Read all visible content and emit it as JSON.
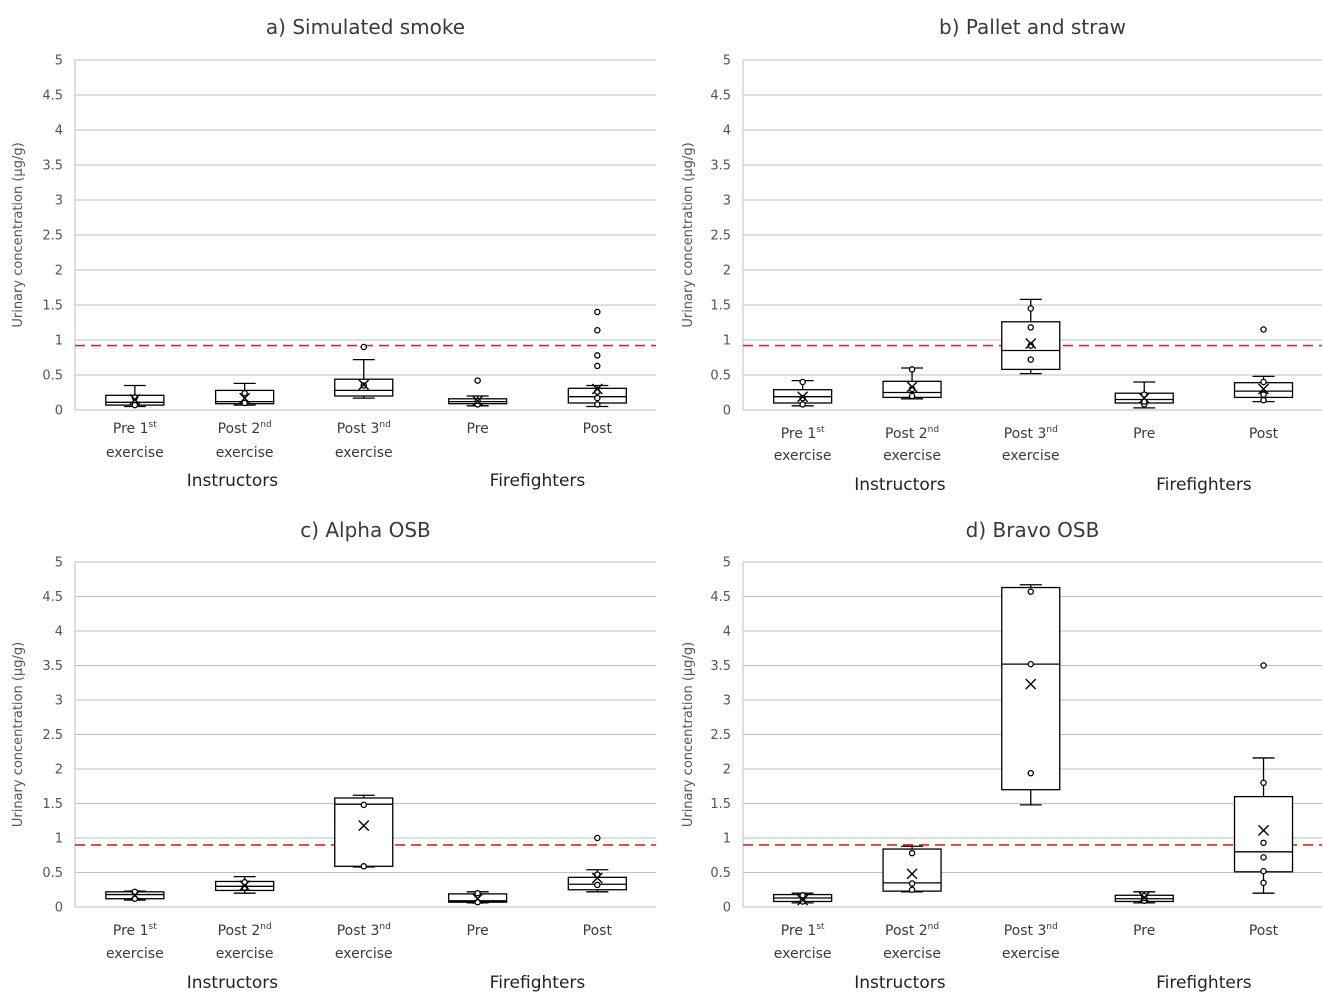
{
  "colors": {
    "box": "#000000",
    "grid": "#bfbfbf",
    "reference_line": "#e8231f",
    "text": "#3a3a3a"
  },
  "chart_data": [
    {
      "type": "box",
      "title": "a) Simulated smoke",
      "ylabel": "Urinary concentration (µg/g)",
      "ylim": [
        0,
        5
      ],
      "yticks": [
        "0",
        "0.5",
        "1",
        "1.5",
        "2",
        "2.5",
        "3",
        "3.5",
        "4",
        "4.5",
        "5"
      ],
      "grid": true,
      "reference_line": 0.92,
      "groups": [
        "Instructors",
        "Firefighters"
      ],
      "categories": [
        {
          "label": "Pre 1",
          "sup": "st",
          "line2": "exercise",
          "group": "Instructors",
          "whisker_low": 0.05,
          "q1": 0.07,
          "median": 0.11,
          "q3": 0.21,
          "whisker_high": 0.35,
          "mean": 0.15,
          "points": [
            0.07,
            0.18
          ]
        },
        {
          "label": "Post 2",
          "sup": "nd",
          "line2": "exercise",
          "group": "Instructors",
          "whisker_low": 0.07,
          "q1": 0.09,
          "median": 0.12,
          "q3": 0.28,
          "whisker_high": 0.38,
          "mean": 0.17,
          "points": [
            0.1,
            0.24
          ]
        },
        {
          "label": "Post 3",
          "sup": "nd",
          "line2": "exercise",
          "group": "Instructors",
          "whisker_low": 0.17,
          "q1": 0.2,
          "median": 0.28,
          "q3": 0.44,
          "whisker_high": 0.72,
          "mean": 0.36,
          "points": [
            0.35,
            0.9
          ]
        },
        {
          "label": "Pre",
          "sup": "",
          "line2": "",
          "group": "Firefighters",
          "whisker_low": 0.06,
          "q1": 0.09,
          "median": 0.12,
          "q3": 0.16,
          "whisker_high": 0.2,
          "mean": 0.13,
          "points": [
            0.08,
            0.13,
            0.42
          ]
        },
        {
          "label": "Post",
          "sup": "",
          "line2": "",
          "group": "Firefighters",
          "whisker_low": 0.05,
          "q1": 0.1,
          "median": 0.19,
          "q3": 0.31,
          "whisker_high": 0.35,
          "mean": 0.3,
          "points": [
            0.08,
            0.17,
            0.26,
            0.63,
            0.78,
            1.14,
            1.4
          ]
        }
      ]
    },
    {
      "type": "box",
      "title": "b) Pallet and straw",
      "ylabel": "Urinary concentration (µg/g)",
      "ylim": [
        0,
        5
      ],
      "yticks": [
        "0",
        "0.5",
        "1",
        "1.5",
        "2",
        "2.5",
        "3",
        "3.5",
        "4",
        "4.5",
        "5"
      ],
      "grid": true,
      "reference_line": 0.92,
      "groups": [
        "Instructors",
        "Firefighters"
      ],
      "categories": [
        {
          "label": "Pre 1",
          "sup": "st",
          "line2": "exercise",
          "group": "Instructors",
          "whisker_low": 0.06,
          "q1": 0.1,
          "median": 0.19,
          "q3": 0.29,
          "whisker_high": 0.42,
          "mean": 0.19,
          "points": [
            0.08,
            0.17,
            0.4
          ]
        },
        {
          "label": "Post 2",
          "sup": "nd",
          "line2": "exercise",
          "group": "Instructors",
          "whisker_low": 0.16,
          "q1": 0.18,
          "median": 0.25,
          "q3": 0.41,
          "whisker_high": 0.6,
          "mean": 0.33,
          "points": [
            0.2,
            0.3,
            0.58
          ]
        },
        {
          "label": "Post 3",
          "sup": "nd",
          "line2": "exercise",
          "group": "Instructors",
          "whisker_low": 0.52,
          "q1": 0.58,
          "median": 0.85,
          "q3": 1.26,
          "whisker_high": 1.58,
          "mean": 0.95,
          "points": [
            0.72,
            0.92,
            1.18,
            1.45
          ]
        },
        {
          "label": "Pre",
          "sup": "",
          "line2": "",
          "group": "Firefighters",
          "whisker_low": 0.03,
          "q1": 0.1,
          "median": 0.15,
          "q3": 0.24,
          "whisker_high": 0.4,
          "mean": 0.17,
          "points": [
            0.08,
            0.12,
            0.22
          ]
        },
        {
          "label": "Post",
          "sup": "",
          "line2": "",
          "group": "Firefighters",
          "whisker_low": 0.12,
          "q1": 0.18,
          "median": 0.27,
          "q3": 0.39,
          "whisker_high": 0.48,
          "mean": 0.3,
          "points": [
            0.14,
            0.22,
            0.4,
            1.15
          ]
        }
      ]
    },
    {
      "type": "box",
      "title": "c) Alpha OSB",
      "ylabel": "Urinary concentration (µg/g)",
      "ylim": [
        0,
        5
      ],
      "yticks": [
        "0",
        "0.5",
        "1",
        "1.5",
        "2",
        "2.5",
        "3",
        "3.5",
        "4",
        "4.5",
        "5"
      ],
      "grid": true,
      "reference_line": 0.9,
      "groups": [
        "Instructors",
        "Firefighters"
      ],
      "categories": [
        {
          "label": "Pre 1",
          "sup": "st",
          "line2": "exercise",
          "group": "Instructors",
          "whisker_low": 0.1,
          "q1": 0.12,
          "median": 0.18,
          "q3": 0.22,
          "whisker_high": 0.23,
          "mean": 0.17,
          "points": [
            0.12,
            0.22
          ]
        },
        {
          "label": "Post 2",
          "sup": "nd",
          "line2": "exercise",
          "group": "Instructors",
          "whisker_low": 0.2,
          "q1": 0.24,
          "median": 0.3,
          "q3": 0.37,
          "whisker_high": 0.44,
          "mean": 0.31,
          "points": [
            0.28,
            0.36
          ]
        },
        {
          "label": "Post 3",
          "sup": "nd",
          "line2": "exercise",
          "group": "Instructors",
          "whisker_low": 0.58,
          "q1": 0.59,
          "median": 1.49,
          "q3": 1.58,
          "whisker_high": 1.62,
          "mean": 1.18,
          "points": [
            0.59,
            1.48
          ]
        },
        {
          "label": "Pre",
          "sup": "",
          "line2": "",
          "group": "Firefighters",
          "whisker_low": 0.06,
          "q1": 0.07,
          "median": 0.09,
          "q3": 0.19,
          "whisker_high": 0.22,
          "mean": 0.12,
          "points": [
            0.07,
            0.2
          ]
        },
        {
          "label": "Post",
          "sup": "",
          "line2": "",
          "group": "Firefighters",
          "whisker_low": 0.22,
          "q1": 0.25,
          "median": 0.33,
          "q3": 0.43,
          "whisker_high": 0.54,
          "mean": 0.42,
          "points": [
            0.32,
            0.47,
            1.0
          ]
        }
      ]
    },
    {
      "type": "box",
      "title": "d) Bravo OSB",
      "ylabel": "Urinary concentration (µg/g)",
      "ylim": [
        0,
        5
      ],
      "yticks": [
        "0",
        "0.5",
        "1",
        "1.5",
        "2",
        "2.5",
        "3",
        "3.5",
        "4",
        "4.5",
        "5"
      ],
      "grid": true,
      "reference_line": 0.9,
      "groups": [
        "Instructors",
        "Firefighters"
      ],
      "categories": [
        {
          "label": "Pre 1",
          "sup": "st",
          "line2": "exercise",
          "group": "Instructors",
          "whisker_low": 0.06,
          "q1": 0.08,
          "median": 0.13,
          "q3": 0.18,
          "whisker_high": 0.2,
          "mean": 0.1,
          "points": [
            0.08,
            0.17
          ]
        },
        {
          "label": "Post 2",
          "sup": "nd",
          "line2": "exercise",
          "group": "Instructors",
          "whisker_low": 0.22,
          "q1": 0.23,
          "median": 0.35,
          "q3": 0.84,
          "whisker_high": 0.88,
          "mean": 0.48,
          "points": [
            0.25,
            0.34,
            0.78
          ]
        },
        {
          "label": "Post 3",
          "sup": "nd",
          "line2": "exercise",
          "group": "Instructors",
          "whisker_low": 1.48,
          "q1": 1.7,
          "median": 3.52,
          "q3": 4.63,
          "whisker_high": 4.67,
          "mean": 3.23,
          "points": [
            1.94,
            3.52,
            4.57
          ]
        },
        {
          "label": "Pre",
          "sup": "",
          "line2": "",
          "group": "Firefighters",
          "whisker_low": 0.06,
          "q1": 0.08,
          "median": 0.12,
          "q3": 0.17,
          "whisker_high": 0.22,
          "mean": 0.14,
          "points": [
            0.09,
            0.13,
            0.16
          ]
        },
        {
          "label": "Post",
          "sup": "",
          "line2": "",
          "group": "Firefighters",
          "whisker_low": 0.2,
          "q1": 0.51,
          "median": 0.8,
          "q3": 1.6,
          "whisker_high": 2.16,
          "mean": 1.11,
          "points": [
            0.35,
            0.52,
            0.72,
            0.93,
            1.8,
            3.5
          ]
        }
      ]
    }
  ]
}
